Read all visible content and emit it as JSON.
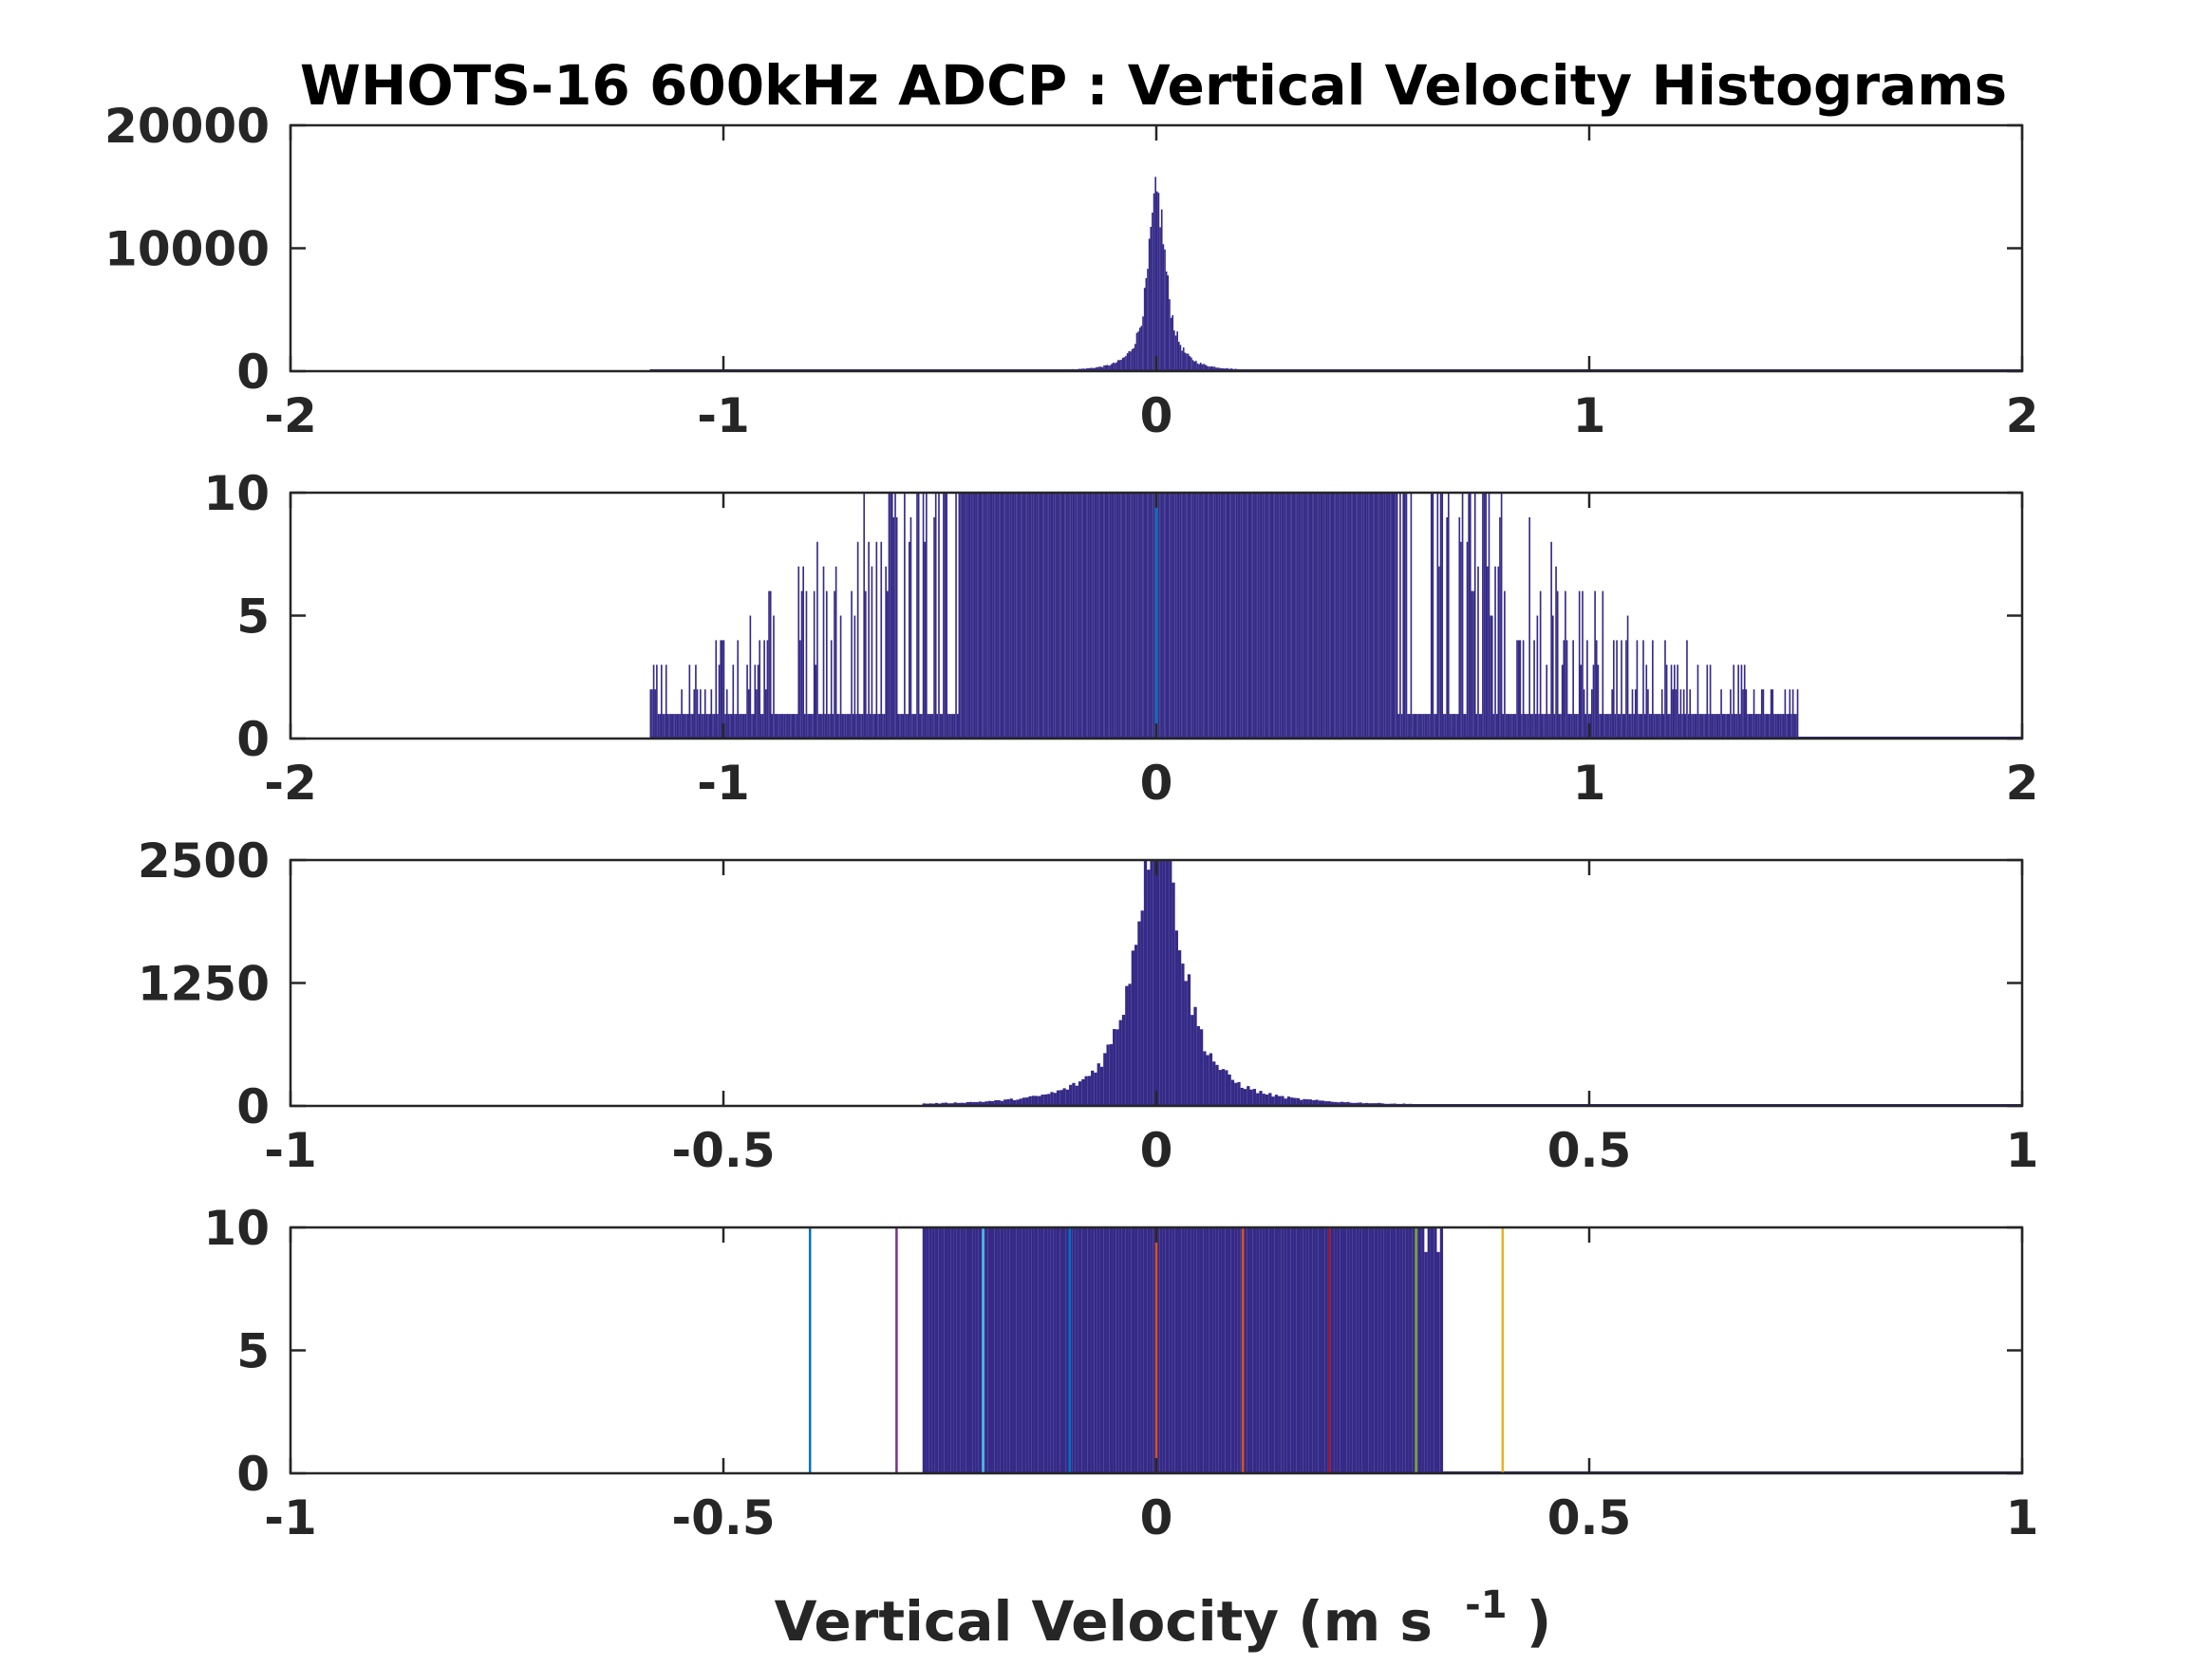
{
  "figure": {
    "title": "WHOTS-16 600kHz ADCP : Vertical Velocity Histograms",
    "xlabel": "Vertical Velocity (m s",
    "xlabel_exp": "-1",
    "xlabel_close": ")"
  },
  "colors": {
    "histogram": "#352a87",
    "axes": "#262626",
    "lines": [
      "#0072bd",
      "#7e2f8e",
      "#4dbeee",
      "#0072bd",
      "#d95319",
      "#d95319",
      "#a2142f",
      "#77ac30",
      "#edb120"
    ]
  },
  "chart_data": [
    {
      "type": "bar",
      "panel": 1,
      "xlim": [
        -2,
        2
      ],
      "ylim": [
        0,
        20000
      ],
      "xticks": [
        -2,
        -1,
        0,
        1,
        2
      ],
      "xtick_labels": [
        "-2",
        "-1",
        "0",
        "1",
        "2"
      ],
      "yticks": [
        0,
        10000,
        20000
      ],
      "ytick_labels": [
        "0",
        "10000",
        "20000"
      ],
      "distribution": {
        "center": 0.0,
        "peak": 14000,
        "core_width": 0.025,
        "support": [
          -1.17,
          1.48
        ]
      },
      "vlines": [],
      "grid": false
    },
    {
      "type": "bar",
      "panel": 2,
      "xlim": [
        -2,
        2
      ],
      "ylim": [
        0,
        10
      ],
      "xticks": [
        -2,
        -1,
        0,
        1,
        2
      ],
      "xtick_labels": [
        "-2",
        "-1",
        "0",
        "1",
        "2"
      ],
      "yticks": [
        0,
        5,
        10
      ],
      "ytick_labels": [
        "0",
        "5",
        "10"
      ],
      "distribution": {
        "center": 0.05,
        "peak": 14000,
        "core_width": 0.025,
        "support": [
          -1.17,
          1.48
        ]
      },
      "vlines": [
        {
          "x": 0.0,
          "color": "#0072bd"
        }
      ],
      "grid": false
    },
    {
      "type": "bar",
      "panel": 3,
      "xlim": [
        -1,
        1
      ],
      "ylim": [
        0,
        2500
      ],
      "xticks": [
        -1,
        -0.5,
        0,
        0.5,
        1
      ],
      "xtick_labels": [
        "-1",
        "-0.5",
        "0",
        "0.5",
        "1"
      ],
      "yticks": [
        0,
        1250,
        2500
      ],
      "ytick_labels": [
        "0",
        "1250",
        "2500"
      ],
      "distribution": {
        "center": 0.0,
        "peak": 3000,
        "core_width": 0.03,
        "support": [
          -0.27,
          0.33
        ]
      },
      "vlines": [],
      "grid": false
    },
    {
      "type": "bar",
      "panel": 4,
      "xlim": [
        -1,
        1
      ],
      "ylim": [
        0,
        10
      ],
      "xticks": [
        -1,
        -0.5,
        0,
        0.5,
        1
      ],
      "xtick_labels": [
        "-1",
        "-0.5",
        "0",
        "0.5",
        "1"
      ],
      "yticks": [
        0,
        5,
        10
      ],
      "ytick_labels": [
        "0",
        "5",
        "10"
      ],
      "distribution": {
        "center": 0.0,
        "peak": 3000,
        "core_width": 0.03,
        "support": [
          -0.27,
          0.33
        ]
      },
      "vlines": [
        {
          "x": -0.4,
          "color": "#0072bd"
        },
        {
          "x": -0.3,
          "color": "#7e2f8e"
        },
        {
          "x": -0.2,
          "color": "#4dbeee"
        },
        {
          "x": -0.1,
          "color": "#0072bd"
        },
        {
          "x": 0.0,
          "color": "#d95319"
        },
        {
          "x": 0.1,
          "color": "#d95319"
        },
        {
          "x": 0.2,
          "color": "#a2142f"
        },
        {
          "x": 0.3,
          "color": "#77ac30"
        },
        {
          "x": 0.4,
          "color": "#edb120"
        }
      ],
      "grid": false
    }
  ]
}
